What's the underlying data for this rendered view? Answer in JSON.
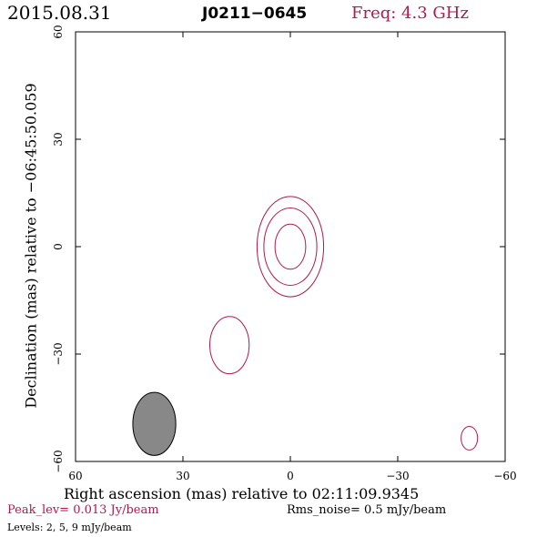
{
  "header": {
    "date": "2015.08.31",
    "source": "J0211−0645",
    "freq": "Freq: 4.3 GHz"
  },
  "footer": {
    "peak": "Peak_lev=  0.013 Jy/beam",
    "rms": "Rms_noise=  0.5 mJy/beam",
    "levels": "Levels:  2,   5,   9 mJy/beam"
  },
  "colors": {
    "contour": "#b0194a",
    "beam": "#888888",
    "axis": "#000000"
  },
  "chart_data": {
    "type": "contour",
    "title": "J0211−0645",
    "xlabel": "Right ascension (mas) relative to 02:11:09.9345",
    "ylabel": "Declination (mas) relative to −06:45:50.059",
    "xlim": [
      60,
      -60
    ],
    "ylim": [
      -60,
      60
    ],
    "xticks": [
      60,
      30,
      0,
      -30,
      -60
    ],
    "yticks": [
      -60,
      -30,
      0,
      30,
      60
    ],
    "xtick_labels": [
      "60",
      "30",
      "0",
      "−30",
      "−60"
    ],
    "ytick_labels": [
      "−60",
      "−30",
      "0",
      "30",
      "60"
    ],
    "contour_levels_mJy": [
      2,
      5,
      9
    ],
    "components": [
      {
        "name": "core-outer",
        "x": 0,
        "y": 0,
        "rx": 9.3,
        "ry": 14
      },
      {
        "name": "core-middle",
        "x": 0,
        "y": 0,
        "rx": 7.4,
        "ry": 10.8
      },
      {
        "name": "core-inner",
        "x": 0,
        "y": 0,
        "rx": 4.3,
        "ry": 6.3
      },
      {
        "name": "jet-blob",
        "x": 17,
        "y": -27.5,
        "rx": 5.5,
        "ry": 8
      },
      {
        "name": "small-blob",
        "x": -50,
        "y": -53.5,
        "rx": 2.3,
        "ry": 3.3
      }
    ],
    "beam": {
      "x": 38,
      "y": -49.5,
      "rx": 6,
      "ry": 8.8
    }
  }
}
